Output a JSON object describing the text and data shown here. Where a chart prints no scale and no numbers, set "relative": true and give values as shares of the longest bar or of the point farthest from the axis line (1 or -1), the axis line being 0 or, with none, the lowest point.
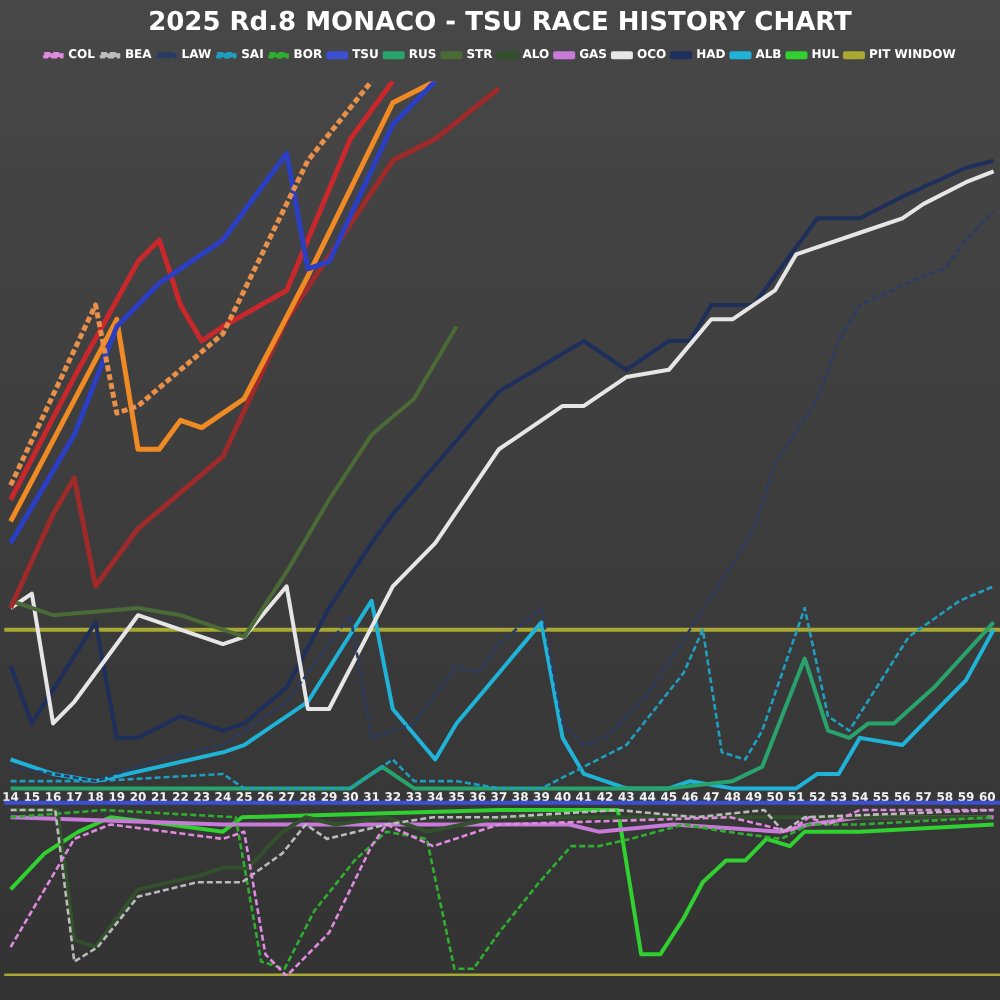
{
  "chart_data": {
    "type": "line",
    "title": "2025 Rd.8 MONACO - TSU RACE HISTORY CHART",
    "relative": true,
    "legend": "top",
    "marker": "none",
    "xlim": [
      13.5,
      60.6
    ],
    "xticks": [
      14,
      15,
      16,
      17,
      18,
      19,
      20,
      21,
      22,
      23,
      24,
      25,
      26,
      27,
      28,
      29,
      30,
      31,
      32,
      33,
      34,
      35,
      36,
      37,
      38,
      39,
      40,
      41,
      42,
      43,
      44,
      45,
      46,
      47,
      48,
      49,
      50,
      51,
      52,
      53,
      54,
      55,
      56,
      57,
      58,
      59,
      60
    ],
    "series": [
      {
        "color": "#2a3fc4",
        "x": [
          14,
          17,
          19,
          21,
          24,
          27,
          28,
          29,
          32,
          33,
          34
        ],
        "values": [
          0.36,
          0.51,
          0.66,
          0.72,
          0.78,
          0.9,
          0.74,
          0.75,
          0.94,
          0.97,
          1.0
        ]
      },
      {
        "color": "#c8282c",
        "x": [
          14,
          17,
          20,
          21,
          22,
          23,
          24,
          27,
          30,
          32
        ],
        "values": [
          0.42,
          0.59,
          0.75,
          0.78,
          0.69,
          0.64,
          0.66,
          0.71,
          0.92,
          1.0
        ]
      },
      {
        "color": "#f08a24",
        "x": [
          14,
          19,
          20,
          21,
          22,
          23,
          25,
          28,
          32,
          34
        ],
        "values": [
          0.39,
          0.67,
          0.49,
          0.49,
          0.53,
          0.52,
          0.56,
          0.73,
          0.97,
          1.0
        ]
      },
      {
        "color": "#e8904a",
        "line_style": "dashed",
        "x": [
          14,
          18,
          19,
          20,
          24,
          28,
          31
        ],
        "values": [
          0.44,
          0.69,
          0.54,
          0.55,
          0.65,
          0.89,
          1.0
        ]
      },
      {
        "color": "#9e2a2a",
        "x": [
          14,
          16,
          17,
          18,
          20,
          24,
          27,
          32,
          34,
          37
        ],
        "values": [
          0.27,
          0.4,
          0.45,
          0.3,
          0.38,
          0.48,
          0.67,
          0.89,
          0.92,
          0.99
        ]
      },
      {
        "name": "TSU",
        "color": "#3b4fd0",
        "x": [
          13.7,
          60.6
        ],
        "values": [
          0,
          0
        ]
      },
      {
        "name": "RUS",
        "color": "#27a36b",
        "x": [
          14,
          30,
          31.5,
          33,
          35,
          41,
          45,
          48,
          49.4,
          51.4,
          52.5,
          53.5,
          54.4,
          55.6,
          57.5,
          60.3
        ],
        "values": [
          0.02,
          0.02,
          0.05,
          0.02,
          0.02,
          0.02,
          0.02,
          0.03,
          0.05,
          0.2,
          0.1,
          0.09,
          0.11,
          0.11,
          0.16,
          0.25
        ]
      },
      {
        "name": "STR",
        "color": "#4a6a36",
        "x": [
          14,
          16,
          20,
          22,
          25,
          27,
          29,
          31,
          33,
          35
        ],
        "values": [
          0.28,
          0.26,
          0.27,
          0.26,
          0.23,
          0.32,
          0.42,
          0.51,
          0.56,
          0.66
        ]
      },
      {
        "name": "ALO",
        "color": "#33502c",
        "x": [
          14,
          16.2,
          17,
          18,
          20,
          23,
          24,
          25.2,
          26.8,
          27.9,
          29.3,
          31.7,
          33.6,
          37,
          45,
          60
        ],
        "values": [
          -0.01,
          -0.01,
          -0.19,
          -0.2,
          -0.12,
          -0.1,
          -0.09,
          -0.09,
          -0.04,
          -0.02,
          -0.03,
          -0.02,
          -0.04,
          -0.02,
          -0.02,
          -0.02
        ]
      },
      {
        "name": "GAS",
        "color": "#c77ad8",
        "x": [
          14,
          24,
          37,
          40.3,
          41.7,
          45.2,
          50.3,
          51.6,
          54,
          60.3
        ],
        "values": [
          -0.02,
          -0.03,
          -0.03,
          -0.03,
          -0.04,
          -0.03,
          -0.04,
          -0.03,
          -0.02,
          -0.02
        ]
      },
      {
        "name": "COL",
        "color": "#e08ae0",
        "line_style": "dashed",
        "x": [
          14,
          17,
          18.7,
          24,
          25,
          26,
          27,
          29,
          31,
          31.7,
          33.9,
          37,
          47.9,
          50.7,
          51.6,
          52.5,
          54,
          60.3
        ],
        "values": [
          -0.2,
          -0.05,
          -0.03,
          -0.05,
          -0.04,
          -0.21,
          -0.24,
          -0.18,
          -0.06,
          -0.03,
          -0.06,
          -0.03,
          -0.02,
          -0.04,
          -0.02,
          -0.03,
          -0.01,
          -0.01
        ]
      },
      {
        "name": "OCO",
        "color": "#e6e6e6",
        "x": [
          14,
          15,
          16,
          17,
          20,
          24,
          25,
          27,
          28,
          29,
          32,
          34,
          37,
          38,
          40,
          41,
          43,
          45,
          47,
          48,
          50,
          51,
          52,
          54,
          56,
          57,
          59,
          60.3
        ],
        "values": [
          0.27,
          0.29,
          0.11,
          0.14,
          0.26,
          0.22,
          0.23,
          0.3,
          0.13,
          0.13,
          0.3,
          0.36,
          0.49,
          0.51,
          0.55,
          0.55,
          0.59,
          0.6,
          0.67,
          0.67,
          0.71,
          0.76,
          0.77,
          0.79,
          0.81,
          0.83,
          0.86,
          0.875
        ]
      },
      {
        "name": "BEA",
        "color": "#bbbbbb",
        "line_style": "dashed",
        "x": [
          14,
          16.1,
          17,
          18.1,
          20,
          22.8,
          24.9,
          26.8,
          27.9,
          28.9,
          31.7,
          33.9,
          37,
          42.6,
          46.3,
          49.5,
          50.4,
          51.4,
          60.3
        ],
        "values": [
          -0.01,
          -0.01,
          -0.22,
          -0.2,
          -0.13,
          -0.11,
          -0.11,
          -0.07,
          -0.03,
          -0.05,
          -0.03,
          -0.02,
          -0.02,
          -0.01,
          -0.02,
          -0.01,
          -0.04,
          -0.02,
          -0.01
        ]
      },
      {
        "name": "HAD",
        "color": "#1e2f5c",
        "x": [
          14,
          15,
          18,
          19,
          20,
          22,
          24,
          25,
          27,
          29,
          31,
          32,
          37,
          41,
          43,
          45,
          46,
          47,
          49,
          50,
          52,
          54,
          56,
          59,
          60.3
        ],
        "values": [
          0.19,
          0.11,
          0.25,
          0.09,
          0.09,
          0.12,
          0.1,
          0.11,
          0.16,
          0.27,
          0.36,
          0.4,
          0.57,
          0.64,
          0.6,
          0.64,
          0.64,
          0.69,
          0.69,
          0.73,
          0.81,
          0.81,
          0.84,
          0.88,
          0.89
        ]
      },
      {
        "name": "LAW",
        "color": "#2a3c66",
        "line_style": "dashed",
        "x": [
          14,
          16,
          18,
          21,
          24,
          27,
          30,
          31,
          33,
          35,
          36,
          37,
          39,
          40,
          41,
          42,
          44,
          46,
          48,
          49,
          50,
          52,
          53,
          54,
          57,
          58,
          59,
          60.3
        ],
        "values": [
          0.05,
          0.04,
          0.03,
          0.06,
          0.08,
          0.14,
          0.26,
          0.09,
          0.11,
          0.19,
          0.18,
          0.22,
          0.27,
          0.11,
          0.08,
          0.09,
          0.15,
          0.24,
          0.33,
          0.38,
          0.47,
          0.56,
          0.64,
          0.69,
          0.73,
          0.74,
          0.78,
          0.82
        ]
      },
      {
        "name": "ALB",
        "color": "#1fb3d8",
        "x": [
          14,
          16,
          18,
          21,
          24,
          25,
          28,
          31,
          32,
          34,
          35,
          37,
          39,
          40,
          41,
          43,
          45,
          46,
          48,
          51,
          52,
          53,
          54,
          56,
          57,
          59,
          60.3
        ],
        "values": [
          0.06,
          0.04,
          0.03,
          0.05,
          0.07,
          0.08,
          0.14,
          0.28,
          0.13,
          0.06,
          0.11,
          0.18,
          0.25,
          0.09,
          0.04,
          0.02,
          0.02,
          0.03,
          0.02,
          0.02,
          0.04,
          0.04,
          0.09,
          0.08,
          0.11,
          0.17,
          0.24
        ]
      },
      {
        "name": "SAI",
        "color": "#1f9fc0",
        "line_style": "dashed",
        "x": [
          14,
          18,
          24,
          25,
          30,
          32,
          33,
          35,
          37,
          39,
          41,
          43,
          45.7,
          46.6,
          47.5,
          48.6,
          49.4,
          51.4,
          52.5,
          53.5,
          56.3,
          58.7,
          60.3
        ],
        "values": [
          0.03,
          0.03,
          0.04,
          0.02,
          0.02,
          0.06,
          0.03,
          0.03,
          0.02,
          0.02,
          0.05,
          0.08,
          0.18,
          0.24,
          0.07,
          0.06,
          0.1,
          0.27,
          0.12,
          0.1,
          0.23,
          0.28,
          0.3
        ]
      },
      {
        "name": "HUL",
        "color": "#2fd02f",
        "x": [
          14,
          15.6,
          17.2,
          18.7,
          21.5,
          24,
          24.9,
          37,
          42.6,
          43.7,
          44.6,
          45.7,
          46.6,
          47.7,
          48.6,
          49.6,
          50.7,
          51.4,
          52.5,
          54,
          60.3
        ],
        "values": [
          -0.12,
          -0.07,
          -0.04,
          -0.02,
          -0.03,
          -0.04,
          -0.02,
          -0.01,
          -0.01,
          -0.21,
          -0.21,
          -0.16,
          -0.11,
          -0.08,
          -0.08,
          -0.05,
          -0.06,
          -0.04,
          -0.04,
          -0.04,
          -0.03
        ]
      },
      {
        "name": "BOR",
        "color": "#2fae2f",
        "line_style": "dashed",
        "x": [
          14,
          18.4,
          24.6,
          25.8,
          26.9,
          28.3,
          30.2,
          31.7,
          33.6,
          34.9,
          35.8,
          37,
          38.9,
          40.4,
          41.7,
          43.2,
          45.7,
          47.7,
          50.3,
          51.6,
          54,
          60.3
        ],
        "values": [
          -0.02,
          -0.01,
          -0.02,
          -0.22,
          -0.23,
          -0.15,
          -0.08,
          -0.04,
          -0.05,
          -0.23,
          -0.23,
          -0.18,
          -0.11,
          -0.06,
          -0.06,
          -0.05,
          -0.03,
          -0.04,
          -0.05,
          -0.03,
          -0.03,
          -0.02
        ]
      },
      {
        "name": "PIT WINDOW",
        "color": "#a8a832",
        "x": [
          13.7,
          60.6
        ],
        "values": [
          0.24,
          0.24
        ]
      },
      {
        "color": "#a8a832",
        "x": [
          13.7,
          60.6
        ],
        "values": [
          -0.24,
          -0.24
        ]
      }
    ]
  }
}
